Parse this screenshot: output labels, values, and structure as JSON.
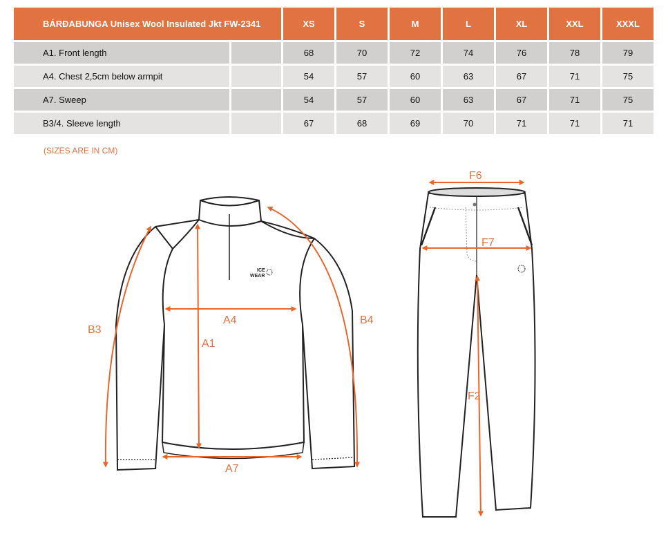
{
  "table": {
    "title": "BÁRÐABUNGA Unisex Wool Insulated Jkt FW-2341",
    "sizes": [
      "XS",
      "S",
      "M",
      "L",
      "XL",
      "XXL",
      "XXXL"
    ],
    "rows": [
      {
        "label": "A1. Front length",
        "values": [
          "68",
          "70",
          "72",
          "74",
          "76",
          "78",
          "79"
        ]
      },
      {
        "label": "A4. Chest 2,5cm below armpit",
        "values": [
          "54",
          "57",
          "60",
          "63",
          "67",
          "71",
          "75"
        ]
      },
      {
        "label": "A7. Sweep",
        "values": [
          "54",
          "57",
          "60",
          "63",
          "67",
          "71",
          "75"
        ]
      },
      {
        "label": "B3/4. Sleeve length",
        "values": [
          "67",
          "68",
          "69",
          "70",
          "71",
          "71",
          "71"
        ]
      }
    ]
  },
  "note": "(SIZES ARE IN CM)",
  "diagram": {
    "jacket_labels": {
      "a1": "A1",
      "a4": "A4",
      "a7": "A7",
      "b3": "B3",
      "b4": "B4"
    },
    "logo": {
      "line1": "ICE",
      "line2": "WEAR"
    },
    "pants_labels": {
      "f6": "F6",
      "f7": "F7",
      "f2": "F2"
    }
  },
  "colors": {
    "accent": "#e07341",
    "row_dark": "#d1d0ce",
    "row_light": "#e4e3e1"
  }
}
